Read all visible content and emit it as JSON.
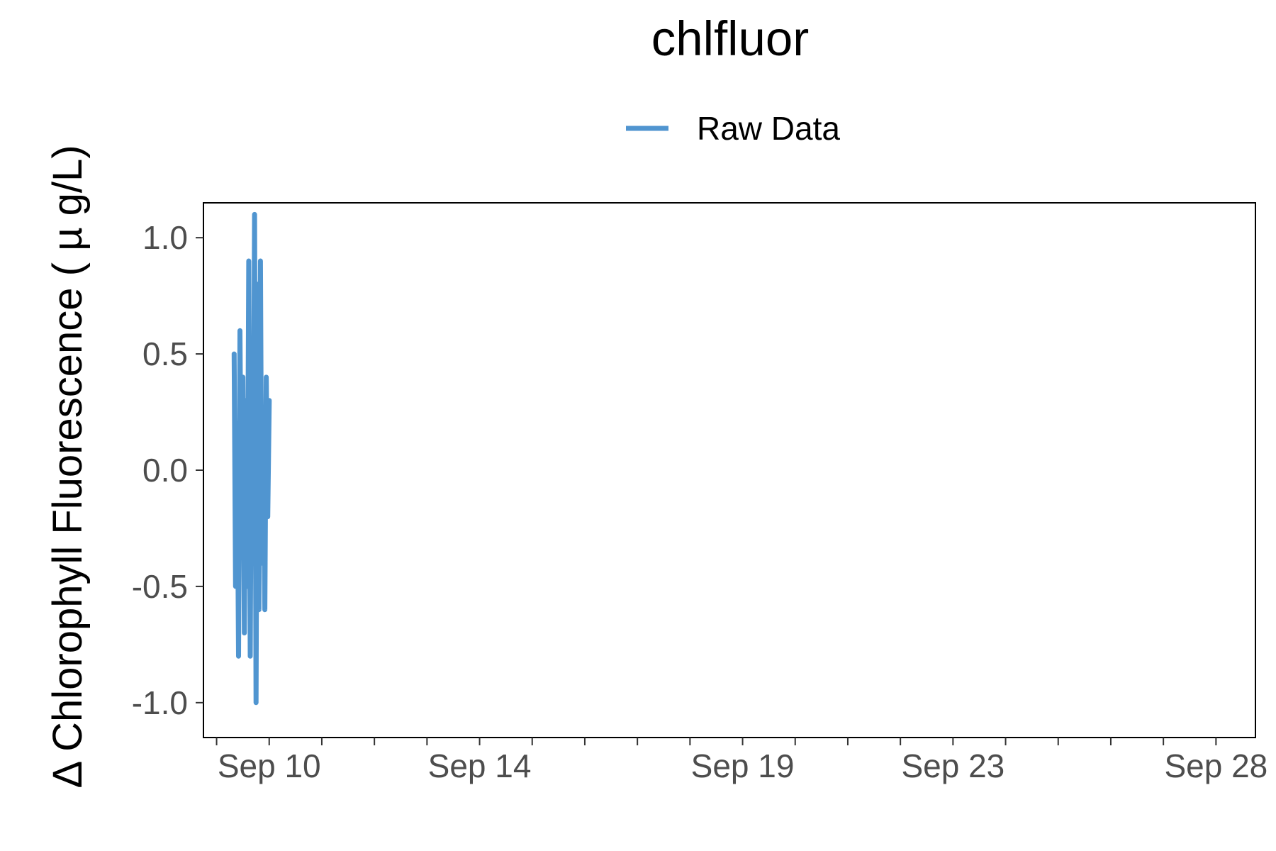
{
  "chart_data": {
    "type": "line",
    "title": "chlfluor",
    "xlabel": "",
    "ylabel": "Δ Chlorophyll Fluorescence ( µ g/L)",
    "legend": {
      "position": "top",
      "entries": [
        "Raw Data"
      ]
    },
    "ylim": [
      -1.15,
      1.15
    ],
    "xlim": [
      "2023-09-08T18:00",
      "2023-09-28T18:00"
    ],
    "yticks": [
      1.0,
      0.5,
      0.0,
      -0.5,
      -1.0
    ],
    "ytick_labels": [
      "1.0",
      "0.5",
      "0.0",
      "-0.5",
      "-1.0"
    ],
    "xtick_labels": [
      "Sep 10",
      "Sep 14",
      "Sep 19",
      "Sep 23",
      "Sep 28"
    ],
    "grid": false,
    "series": [
      {
        "name": "Raw Data",
        "color": "#5095D0",
        "x": [
          "2023-09-09T08:00",
          "2023-09-09T08:40",
          "2023-09-09T09:20",
          "2023-09-09T10:00",
          "2023-09-09T10:40",
          "2023-09-09T11:20",
          "2023-09-09T12:00",
          "2023-09-09T12:40",
          "2023-09-09T13:20",
          "2023-09-09T14:00",
          "2023-09-09T14:40",
          "2023-09-09T15:20",
          "2023-09-09T16:00",
          "2023-09-09T16:40",
          "2023-09-09T17:20",
          "2023-09-09T18:00",
          "2023-09-09T18:40",
          "2023-09-09T19:20",
          "2023-09-09T20:00",
          "2023-09-09T20:40",
          "2023-09-09T21:20",
          "2023-09-09T22:00",
          "2023-09-09T22:40",
          "2023-09-09T23:20",
          "2023-09-10T00:00"
        ],
        "y": [
          0.5,
          -0.5,
          0.2,
          -0.8,
          0.6,
          -0.3,
          0.4,
          -0.7,
          0.3,
          -0.5,
          0.9,
          -0.8,
          0.5,
          -0.2,
          1.1,
          -1.0,
          0.8,
          -0.6,
          0.9,
          -0.4,
          0.2,
          -0.6,
          0.4,
          -0.2,
          0.3
        ]
      }
    ]
  }
}
